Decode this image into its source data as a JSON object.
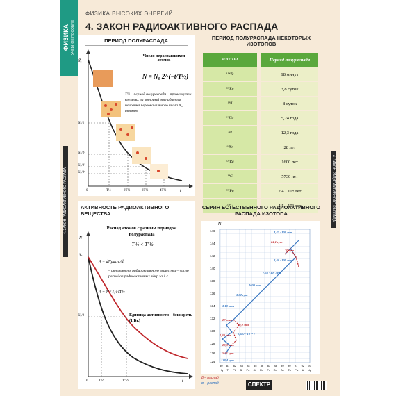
{
  "subject": "ФИЗИКА",
  "subject_sub": "УЧЕБНОЕ ПОСОБИЕ",
  "subtitle": "ФИЗИКА ВЫСОКИХ ЭНЕРГИЙ",
  "title": "4. ЗАКОН РАДИОАКТИВНОГО РАСПАДА",
  "side_label": "4. ЗАКОН РАДИОАКТИВНОГО РАСПАДА",
  "panel1": {
    "heading": "ПЕРИОД ПОЛУРАСПАДА",
    "caption_title": "Число нераспавшихся атомов",
    "formula": "N = N₀ 2^(−t/T½)",
    "definition": "T½ – период полураспада – промежуток времени, за который распадается половина первоначального числа N₀ атомов.",
    "y_axis": "N",
    "x_axis": "t",
    "y_ticks": [
      "N₀",
      "N₀/2",
      "N₀/2²",
      "N₀/2³",
      "N₀/2⁴"
    ],
    "x_ticks": [
      "0",
      "T½",
      "2T½",
      "3T½",
      "4T½"
    ]
  },
  "panel2": {
    "heading": "ПЕРИОД ПОЛУРАСПАДА НЕКОТОРЫХ ИЗОТОПОВ",
    "col_isotope": "ИЗОТОП",
    "col_period": "Период полураспада",
    "rows": [
      {
        "isotope": "¹⁰⁴Tc",
        "period": "18 минут"
      },
      {
        "isotope": "²²²Rn",
        "period": "3,8 суток"
      },
      {
        "isotope": "¹³¹I",
        "period": "8 суток"
      },
      {
        "isotope": "⁶⁰Co",
        "period": "5,24 года"
      },
      {
        "isotope": "³H",
        "period": "12,3 года"
      },
      {
        "isotope": "⁹⁰Sr",
        "period": "28 лет"
      },
      {
        "isotope": "²²⁶Ra",
        "period": "1600 лет"
      },
      {
        "isotope": "¹⁴C",
        "period": "5730 лет"
      },
      {
        "isotope": "²³⁹Pu",
        "period": "2,4 · 10⁴ лет"
      },
      {
        "isotope": "²³⁸U",
        "period": "4,5 · 10⁹ лет"
      }
    ]
  },
  "panel3": {
    "heading": "АКТИВНОСТЬ РАДИОАКТИВНОГО ВЕЩЕСТВА",
    "caption": "Распад атомов с разным периодом полураспада",
    "inequality": "T′½ < T″½",
    "activity_formula": "A = dNрасп./dt",
    "activity_def": "– активность радиоактивного вещества – число распадов радиоактивных ядер за 1 с",
    "activity_formula2": "A = N / 1,44T½",
    "unit": "Единица активности – беккерель (1 Бк)",
    "y_axis": "N",
    "x_axis": "t",
    "y_ticks": [
      "N₀",
      "N₀/2"
    ],
    "x_ticks": [
      "0",
      "T′½",
      "T″½"
    ]
  },
  "panel4": {
    "heading": "СЕРИЯ ЕСТЕСТВЕННОГО РАДИОАКТИВНОГО РАСПАДА ИЗОТОПА",
    "y_axis": "N",
    "y_ticks": [
      "146",
      "144",
      "142",
      "140",
      "138",
      "136",
      "134",
      "132",
      "130",
      "128",
      "126",
      "124"
    ],
    "x_ticks": [
      "80",
      "81",
      "82",
      "83",
      "84",
      "85",
      "86",
      "87",
      "88",
      "89",
      "90",
      "91",
      "92",
      "93"
    ],
    "x_elements": [
      "Hg",
      "Tl",
      "Pb",
      "Bi",
      "Po",
      "At",
      "Rn",
      "Fr",
      "Ra",
      "Ac",
      "Th",
      "Pa",
      "U",
      "Np"
    ],
    "labels": [
      {
        "text": "4,47 · 10⁹ лет",
        "color": "#2a6fbf"
      },
      {
        "text": "24,1 сут",
        "color": "#c0282d"
      },
      {
        "text": "70 сут",
        "color": "#c0282d"
      },
      {
        "text": "2,46 · 10⁵ лет",
        "color": "#2a6fbf"
      },
      {
        "text": "7,54 · 10⁴ лет",
        "color": "#2a6fbf"
      },
      {
        "text": "1600 лет",
        "color": "#2a6fbf"
      },
      {
        "text": "3,82 сут",
        "color": "#2a6fbf"
      },
      {
        "text": "3,10 мин",
        "color": "#2a6fbf"
      },
      {
        "text": "27 мин",
        "color": "#c0282d"
      },
      {
        "text": "19,9 мин",
        "color": "#c0282d"
      },
      {
        "text": "1,30 мин",
        "color": "#c0282d"
      },
      {
        "text": "1,637 · 10⁻⁴ с",
        "color": "#2a6fbf"
      },
      {
        "text": "22,3 лет",
        "color": "#c0282d"
      },
      {
        "text": "5,01 сут",
        "color": "#c0282d"
      },
      {
        "text": "138,4 сут",
        "color": "#2a6fbf"
      }
    ],
    "legend_beta": "β – распад",
    "legend_alpha": "α – распад"
  },
  "logo": "СПЕКТР",
  "colors": {
    "accent": "#1f9a84",
    "table_header": "#5aa83c",
    "curve": "#222222",
    "curve_red": "#c0282d",
    "grid_blue": "#3a78c2"
  }
}
